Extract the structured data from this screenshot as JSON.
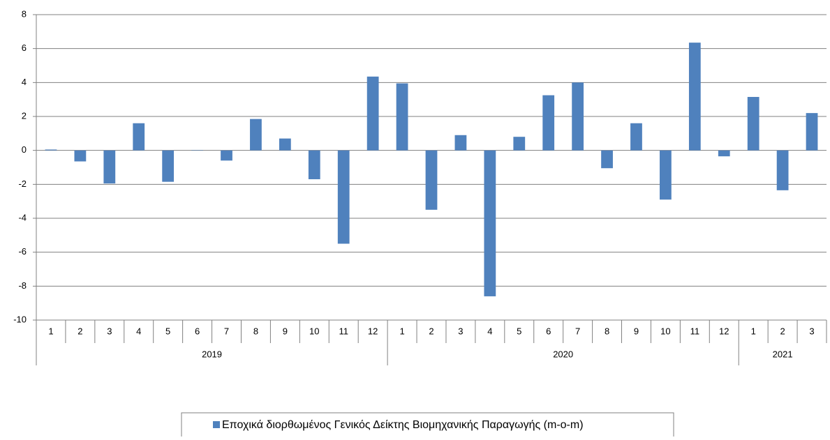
{
  "chart_data": {
    "type": "bar",
    "categories": [
      "1",
      "2",
      "3",
      "4",
      "5",
      "6",
      "7",
      "8",
      "9",
      "10",
      "11",
      "12",
      "1",
      "2",
      "3",
      "4",
      "5",
      "6",
      "7",
      "8",
      "9",
      "10",
      "11",
      "12",
      "1",
      "2",
      "3"
    ],
    "groups": [
      "2019",
      "2020",
      "2021"
    ],
    "series": [
      {
        "name": "Εποχικά διορθωμένος Γενικός Δείκτης Βιομηχανικής Παραγωγής (m-o-m)",
        "color": "#4f81bd",
        "values": [
          0.05,
          -0.65,
          -1.95,
          1.6,
          -1.85,
          0.02,
          -0.6,
          1.85,
          0.7,
          -1.7,
          -5.5,
          4.35,
          3.95,
          -3.5,
          0.9,
          -8.6,
          0.8,
          3.25,
          4.0,
          -1.05,
          1.6,
          -2.9,
          6.35,
          -0.35,
          3.15,
          -2.35,
          2.2
        ]
      }
    ],
    "ylim": [
      -10,
      8
    ],
    "yticks": [
      -10,
      -8,
      -6,
      -4,
      -2,
      0,
      2,
      4,
      6,
      8
    ],
    "grid": true,
    "legend": "bottom"
  }
}
